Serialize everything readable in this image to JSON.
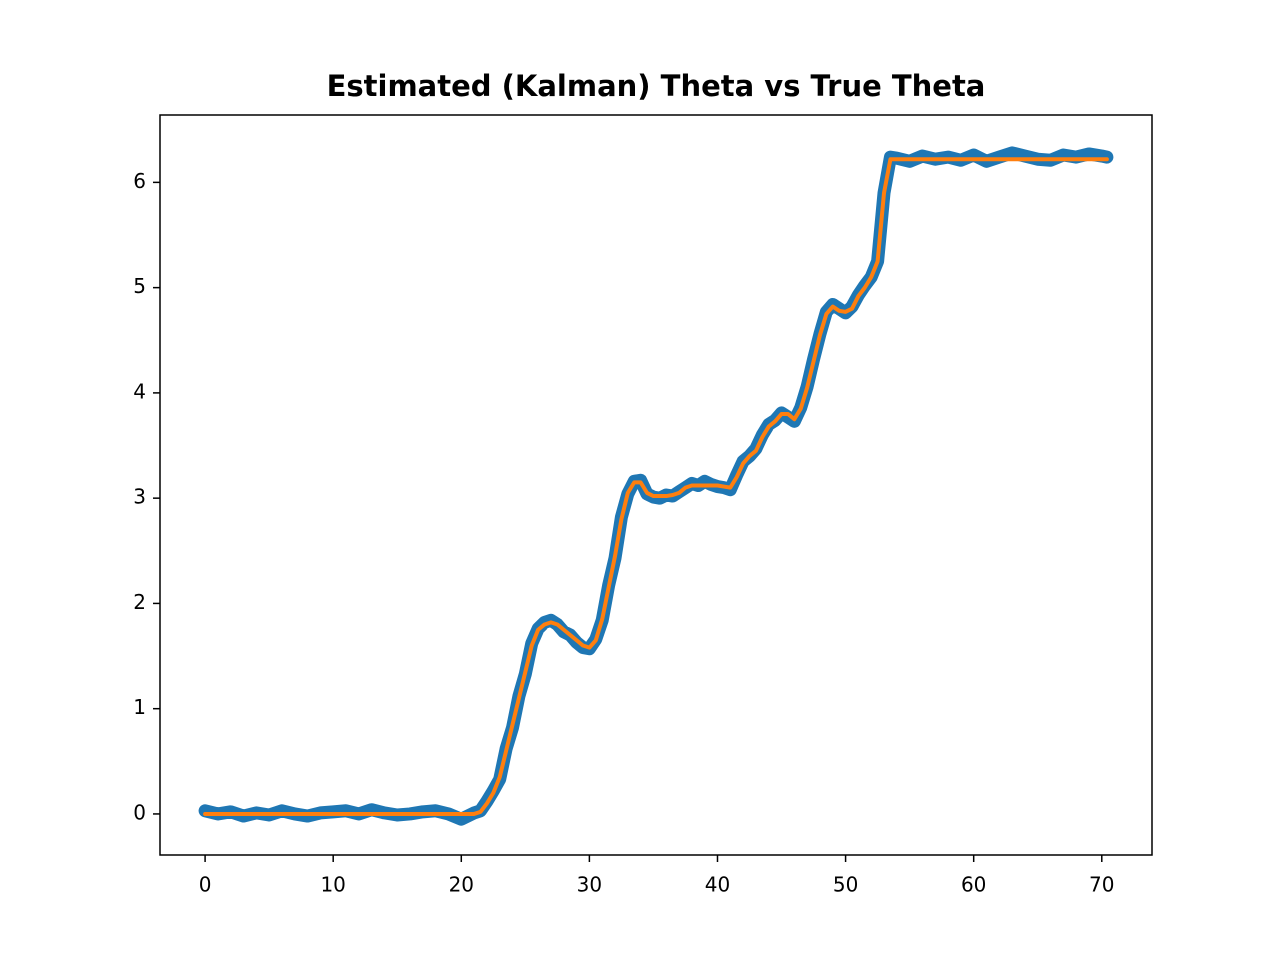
{
  "chart_data": {
    "type": "line",
    "title": "Estimated (Kalman) Theta vs True Theta",
    "x": [
      0,
      1,
      2,
      3,
      4,
      5,
      6,
      7,
      8,
      9,
      10,
      11,
      12,
      13,
      14,
      15,
      16,
      17,
      18,
      19,
      20,
      21,
      21.5,
      22,
      22.5,
      23,
      23.5,
      24,
      24.5,
      25,
      25.5,
      26,
      26.5,
      27,
      27.5,
      28,
      28.5,
      29,
      29.5,
      30,
      30.5,
      31,
      31.5,
      32,
      32.5,
      33,
      33.5,
      34,
      34.5,
      35,
      35.5,
      36,
      36.5,
      37,
      37.5,
      38,
      38.5,
      39,
      39.5,
      40,
      40.5,
      41,
      41.5,
      42,
      42.5,
      43,
      43.5,
      44,
      44.5,
      45,
      45.5,
      46,
      46.5,
      47,
      47.5,
      48,
      48.5,
      49,
      49.5,
      50,
      50.5,
      51,
      51.5,
      52,
      52.5,
      53,
      53.5,
      54,
      55,
      56,
      57,
      58,
      59,
      60,
      61,
      62,
      63,
      64,
      65,
      66,
      67,
      68,
      69,
      70,
      70.4
    ],
    "series": [
      {
        "color": "#1f77b4",
        "width": 13,
        "values": [
          0.03,
          0.0,
          0.02,
          -0.02,
          0.01,
          -0.01,
          0.03,
          0.0,
          -0.02,
          0.01,
          0.02,
          0.03,
          0.0,
          0.04,
          0.01,
          -0.01,
          0.0,
          0.02,
          0.03,
          0.0,
          -0.05,
          0.01,
          0.03,
          0.12,
          0.22,
          0.33,
          0.62,
          0.82,
          1.12,
          1.33,
          1.62,
          1.76,
          1.82,
          1.84,
          1.8,
          1.73,
          1.7,
          1.63,
          1.58,
          1.57,
          1.66,
          1.84,
          2.17,
          2.43,
          2.82,
          3.04,
          3.16,
          3.17,
          3.04,
          3.01,
          3.0,
          3.03,
          3.02,
          3.06,
          3.1,
          3.14,
          3.12,
          3.16,
          3.13,
          3.11,
          3.1,
          3.08,
          3.22,
          3.35,
          3.4,
          3.47,
          3.6,
          3.7,
          3.74,
          3.81,
          3.77,
          3.73,
          3.86,
          4.06,
          4.32,
          4.56,
          4.77,
          4.84,
          4.8,
          4.76,
          4.82,
          4.93,
          5.02,
          5.1,
          5.25,
          5.9,
          6.24,
          6.23,
          6.2,
          6.25,
          6.22,
          6.24,
          6.21,
          6.26,
          6.2,
          6.24,
          6.28,
          6.25,
          6.22,
          6.21,
          6.26,
          6.24,
          6.27,
          6.25,
          6.24
        ]
      },
      {
        "color": "#ff7f0e",
        "width": 4,
        "values": [
          0,
          0,
          0,
          0,
          0,
          0,
          0,
          0,
          0,
          0,
          0,
          0,
          0,
          0,
          0,
          0,
          0,
          0,
          0,
          0,
          0,
          0,
          0.02,
          0.1,
          0.2,
          0.35,
          0.6,
          0.85,
          1.1,
          1.35,
          1.6,
          1.75,
          1.8,
          1.82,
          1.8,
          1.75,
          1.7,
          1.65,
          1.6,
          1.58,
          1.65,
          1.85,
          2.15,
          2.45,
          2.8,
          3.05,
          3.15,
          3.15,
          3.05,
          3.02,
          3.02,
          3.02,
          3.03,
          3.05,
          3.1,
          3.12,
          3.12,
          3.12,
          3.12,
          3.12,
          3.11,
          3.1,
          3.2,
          3.33,
          3.4,
          3.45,
          3.58,
          3.68,
          3.73,
          3.8,
          3.8,
          3.75,
          3.85,
          4.05,
          4.3,
          4.55,
          4.75,
          4.82,
          4.78,
          4.77,
          4.8,
          4.92,
          5.0,
          5.1,
          5.25,
          5.9,
          6.22,
          6.22,
          6.22,
          6.22,
          6.22,
          6.22,
          6.22,
          6.22,
          6.22,
          6.22,
          6.22,
          6.22,
          6.22,
          6.22,
          6.22,
          6.22,
          6.22,
          6.22,
          6.22
        ]
      }
    ],
    "xlim": [
      -3.52,
      73.92
    ],
    "xticks": [
      0,
      10,
      20,
      30,
      40,
      50,
      60,
      70
    ],
    "ylim": [
      -0.39,
      6.64
    ],
    "yticks": [
      0,
      1,
      2,
      3,
      4,
      5,
      6
    ]
  }
}
